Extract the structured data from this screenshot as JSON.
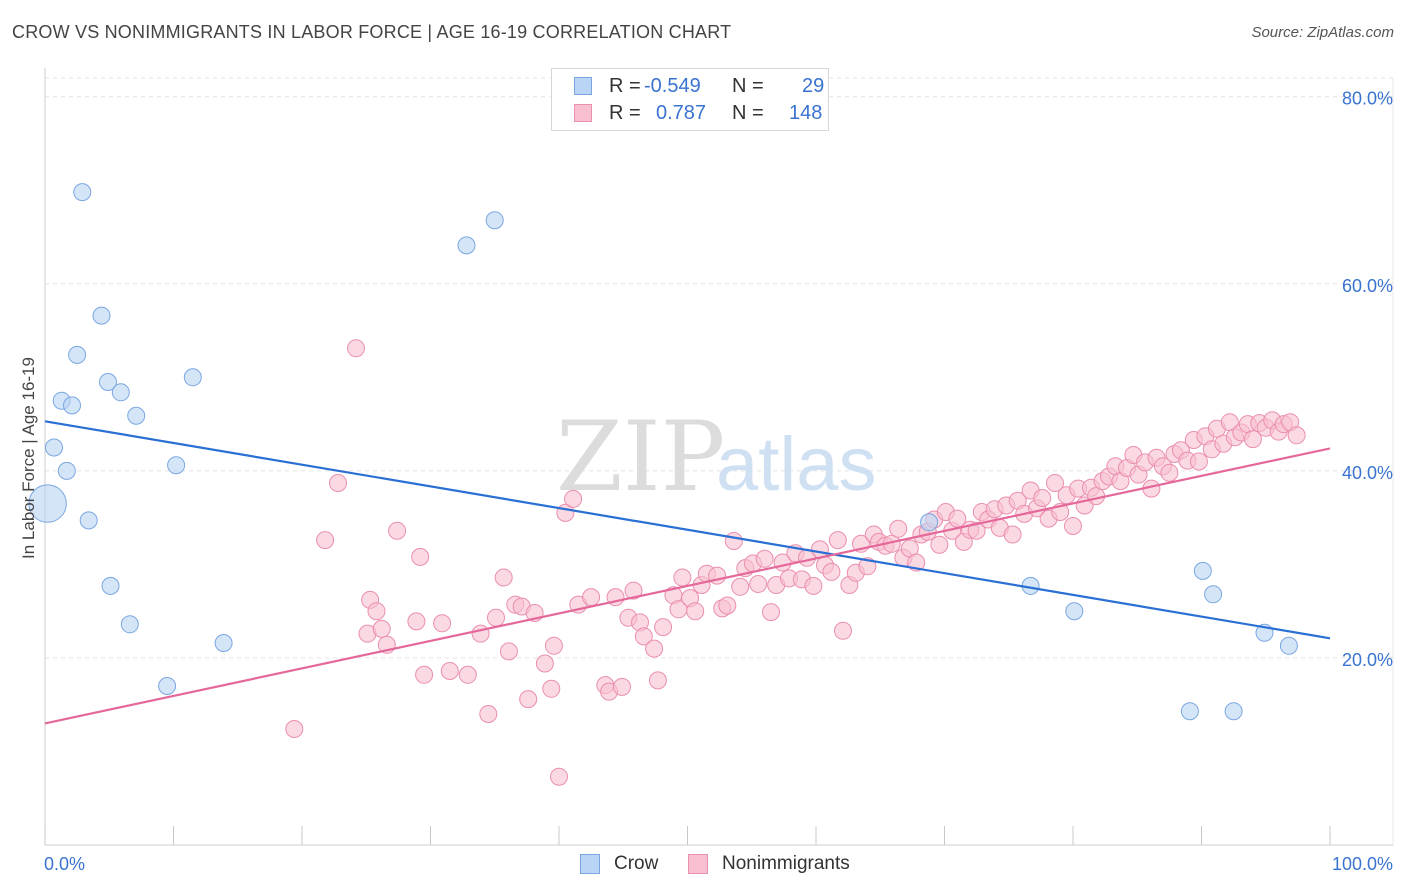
{
  "header": {
    "title": "CROW VS NONIMMIGRANTS IN LABOR FORCE | AGE 16-19 CORRELATION CHART",
    "source": "Source: ZipAtlas.com"
  },
  "legend_top": {
    "rows": [
      {
        "r_label": "R =",
        "r_value": "-0.549",
        "n_label": "N =",
        "n_value": "29",
        "swatch_fill": "#b9d4f4",
        "swatch_stroke": "#7aa7e0"
      },
      {
        "r_label": "R =",
        "r_value": "0.787",
        "n_label": "N =",
        "n_value": "148",
        "swatch_fill": "#f8bfd0",
        "swatch_stroke": "#ea8fae"
      }
    ]
  },
  "legend_bottom": {
    "items": [
      {
        "label": "Crow",
        "swatch_fill": "#b9d4f4",
        "swatch_stroke": "#7aa7e0"
      },
      {
        "label": "Nonimmigrants",
        "swatch_fill": "#f8bfd0",
        "swatch_stroke": "#ea8fae"
      }
    ]
  },
  "watermark": {
    "part1": "ZIP",
    "part2": "atlas"
  },
  "colors": {
    "crow_fill": "#b9d4f4",
    "crow_stroke": "#7aa7e0",
    "crow_line": "#2a6fd4",
    "non_fill": "#f8bfd0",
    "non_stroke": "#ea8fae",
    "non_line": "#e4689a",
    "tick_text": "#3a73d0",
    "grid": "#e3e3e3"
  },
  "chart_data": {
    "type": "scatter",
    "title": "CROW VS NONIMMIGRANTS IN LABOR FORCE | AGE 16-19 CORRELATION CHART",
    "ylabel": "In Labor Force | Age 16-19",
    "xlabel": "",
    "x_tick_labels": [
      "0.0%",
      "100.0%"
    ],
    "y_tick_labels": [
      "20.0%",
      "40.0%",
      "60.0%",
      "80.0%"
    ],
    "y_ticks": [
      20,
      40,
      60,
      80
    ],
    "xlim": [
      0,
      100
    ],
    "ylim": [
      0,
      82
    ],
    "grid": true,
    "legend_position": "top-center",
    "series": [
      {
        "name": "Crow",
        "regression": {
          "r": -0.549,
          "n": 29,
          "y_at_x0": 45.3,
          "y_at_x100": 22.1
        },
        "points": [
          [
            0.2,
            36.5,
            2.2
          ],
          [
            0.7,
            42.5,
            1
          ],
          [
            1.3,
            47.5,
            1
          ],
          [
            1.7,
            40.0,
            1
          ],
          [
            2.1,
            47.0,
            1
          ],
          [
            2.5,
            52.4,
            1
          ],
          [
            2.9,
            69.8,
            1
          ],
          [
            3.4,
            34.7,
            1
          ],
          [
            4.4,
            56.6,
            1
          ],
          [
            4.9,
            49.5,
            1
          ],
          [
            5.1,
            27.7,
            1
          ],
          [
            5.9,
            48.4,
            1
          ],
          [
            6.6,
            23.6,
            1
          ],
          [
            7.1,
            45.9,
            1
          ],
          [
            9.5,
            17.0,
            1
          ],
          [
            10.2,
            40.6,
            1
          ],
          [
            11.5,
            50.0,
            1
          ],
          [
            13.9,
            21.6,
            1
          ],
          [
            32.8,
            64.1,
            1
          ],
          [
            35.0,
            66.8,
            1
          ],
          [
            68.8,
            34.5,
            1
          ],
          [
            76.7,
            27.7,
            1
          ],
          [
            80.1,
            25.0,
            1
          ],
          [
            89.1,
            14.3,
            1
          ],
          [
            90.1,
            29.3,
            1
          ],
          [
            90.9,
            26.8,
            1
          ],
          [
            92.5,
            14.3,
            1
          ],
          [
            94.9,
            22.7,
            1
          ],
          [
            96.8,
            21.3,
            1
          ]
        ]
      },
      {
        "name": "Nonimmigrants",
        "regression": {
          "r": 0.787,
          "n": 148,
          "y_at_x0": 13.0,
          "y_at_x100": 42.4
        },
        "points": [
          [
            19.4,
            12.4,
            1
          ],
          [
            21.8,
            32.6,
            1
          ],
          [
            22.8,
            38.7,
            1
          ],
          [
            24.2,
            53.1,
            1
          ],
          [
            25.1,
            22.6,
            1
          ],
          [
            25.3,
            26.2,
            1
          ],
          [
            25.8,
            25.0,
            1
          ],
          [
            26.2,
            23.1,
            1
          ],
          [
            26.6,
            21.4,
            1
          ],
          [
            27.4,
            33.6,
            1
          ],
          [
            28.9,
            23.9,
            1
          ],
          [
            29.2,
            30.8,
            1
          ],
          [
            29.5,
            18.2,
            1
          ],
          [
            30.9,
            23.7,
            1
          ],
          [
            31.5,
            18.6,
            1
          ],
          [
            32.9,
            18.2,
            1
          ],
          [
            33.9,
            22.6,
            1
          ],
          [
            34.5,
            14.0,
            1
          ],
          [
            35.1,
            24.3,
            1
          ],
          [
            35.7,
            28.6,
            1
          ],
          [
            36.1,
            20.7,
            1
          ],
          [
            36.6,
            25.7,
            1
          ],
          [
            37.1,
            25.5,
            1
          ],
          [
            37.6,
            15.6,
            1
          ],
          [
            38.1,
            24.8,
            1
          ],
          [
            38.9,
            19.4,
            1
          ],
          [
            39.4,
            16.7,
            1
          ],
          [
            39.6,
            21.3,
            1
          ],
          [
            40.0,
            7.3,
            1
          ],
          [
            40.5,
            35.5,
            1
          ],
          [
            41.1,
            37.0,
            1
          ],
          [
            41.5,
            25.7,
            1
          ],
          [
            42.5,
            26.5,
            1
          ],
          [
            43.6,
            17.1,
            1
          ],
          [
            43.9,
            16.4,
            1
          ],
          [
            44.4,
            26.5,
            1
          ],
          [
            44.9,
            16.9,
            1
          ],
          [
            45.4,
            24.3,
            1
          ],
          [
            45.8,
            27.2,
            1
          ],
          [
            46.3,
            23.8,
            1
          ],
          [
            46.6,
            22.3,
            1
          ],
          [
            47.4,
            21.0,
            1
          ],
          [
            47.7,
            17.6,
            1
          ],
          [
            48.1,
            23.3,
            1
          ],
          [
            48.9,
            26.7,
            1
          ],
          [
            49.3,
            25.2,
            1
          ],
          [
            49.6,
            28.6,
            1
          ],
          [
            50.2,
            26.4,
            1
          ],
          [
            50.6,
            25.0,
            1
          ],
          [
            51.1,
            27.8,
            1
          ],
          [
            51.5,
            29.0,
            1
          ],
          [
            52.3,
            28.8,
            1
          ],
          [
            52.7,
            25.3,
            1
          ],
          [
            53.1,
            25.6,
            1
          ],
          [
            53.6,
            32.5,
            1
          ],
          [
            54.1,
            27.6,
            1
          ],
          [
            54.5,
            29.6,
            1
          ],
          [
            55.1,
            30.1,
            1
          ],
          [
            55.5,
            27.9,
            1
          ],
          [
            56.0,
            30.6,
            1
          ],
          [
            56.5,
            24.9,
            1
          ],
          [
            56.9,
            27.8,
            1
          ],
          [
            57.4,
            30.2,
            1
          ],
          [
            57.9,
            28.5,
            1
          ],
          [
            58.4,
            31.2,
            1
          ],
          [
            58.9,
            28.4,
            1
          ],
          [
            59.3,
            30.7,
            1
          ],
          [
            59.8,
            27.7,
            1
          ],
          [
            60.3,
            31.6,
            1
          ],
          [
            60.7,
            29.9,
            1
          ],
          [
            61.2,
            29.2,
            1
          ],
          [
            61.7,
            32.6,
            1
          ],
          [
            62.1,
            22.9,
            1
          ],
          [
            62.6,
            27.8,
            1
          ],
          [
            63.1,
            29.1,
            1
          ],
          [
            63.5,
            32.2,
            1
          ],
          [
            64.0,
            29.8,
            1
          ],
          [
            64.5,
            33.2,
            1
          ],
          [
            64.9,
            32.4,
            1
          ],
          [
            65.4,
            32.0,
            1
          ],
          [
            65.9,
            32.2,
            1
          ],
          [
            66.4,
            33.8,
            1
          ],
          [
            66.8,
            30.7,
            1
          ],
          [
            67.3,
            31.7,
            1
          ],
          [
            67.8,
            30.2,
            1
          ],
          [
            68.2,
            33.2,
            1
          ],
          [
            68.7,
            33.5,
            1
          ],
          [
            69.2,
            34.8,
            1
          ],
          [
            69.6,
            32.1,
            1
          ],
          [
            70.1,
            35.6,
            1
          ],
          [
            70.6,
            33.6,
            1
          ],
          [
            71.0,
            34.9,
            1
          ],
          [
            71.5,
            32.4,
            1
          ],
          [
            72.0,
            33.7,
            1
          ],
          [
            72.5,
            33.6,
            1
          ],
          [
            72.9,
            35.6,
            1
          ],
          [
            73.4,
            34.8,
            1
          ],
          [
            73.9,
            35.9,
            1
          ],
          [
            74.3,
            33.9,
            1
          ],
          [
            74.8,
            36.3,
            1
          ],
          [
            75.3,
            33.2,
            1
          ],
          [
            75.7,
            36.8,
            1
          ],
          [
            76.2,
            35.4,
            1
          ],
          [
            76.7,
            37.9,
            1
          ],
          [
            77.2,
            36.0,
            1
          ],
          [
            77.6,
            37.1,
            1
          ],
          [
            78.1,
            34.9,
            1
          ],
          [
            78.6,
            38.7,
            1
          ],
          [
            79.0,
            35.6,
            1
          ],
          [
            79.5,
            37.4,
            1
          ],
          [
            80.0,
            34.1,
            1
          ],
          [
            80.4,
            38.1,
            1
          ],
          [
            80.9,
            36.3,
            1
          ],
          [
            81.4,
            38.2,
            1
          ],
          [
            81.8,
            37.3,
            1
          ],
          [
            82.3,
            38.9,
            1
          ],
          [
            82.8,
            39.4,
            1
          ],
          [
            83.3,
            40.5,
            1
          ],
          [
            83.7,
            38.9,
            1
          ],
          [
            84.2,
            40.3,
            1
          ],
          [
            84.7,
            41.7,
            1
          ],
          [
            85.1,
            39.6,
            1
          ],
          [
            85.6,
            40.9,
            1
          ],
          [
            86.1,
            38.1,
            1
          ],
          [
            86.5,
            41.4,
            1
          ],
          [
            87.0,
            40.5,
            1
          ],
          [
            87.5,
            39.8,
            1
          ],
          [
            87.9,
            41.8,
            1
          ],
          [
            88.4,
            42.2,
            1
          ],
          [
            88.9,
            41.1,
            1
          ],
          [
            89.4,
            43.3,
            1
          ],
          [
            89.8,
            41.0,
            1
          ],
          [
            90.3,
            43.7,
            1
          ],
          [
            90.8,
            42.3,
            1
          ],
          [
            91.2,
            44.5,
            1
          ],
          [
            91.7,
            42.9,
            1
          ],
          [
            92.2,
            45.2,
            1
          ],
          [
            92.6,
            43.6,
            1
          ],
          [
            93.1,
            44.1,
            1
          ],
          [
            93.6,
            45.0,
            1
          ],
          [
            94.0,
            43.4,
            1
          ],
          [
            94.5,
            45.1,
            1
          ],
          [
            95.0,
            44.6,
            1
          ],
          [
            95.5,
            45.4,
            1
          ],
          [
            96.0,
            44.2,
            1
          ],
          [
            96.4,
            45.0,
            1
          ],
          [
            96.9,
            45.2,
            1
          ],
          [
            97.4,
            43.8,
            1
          ]
        ]
      }
    ]
  }
}
